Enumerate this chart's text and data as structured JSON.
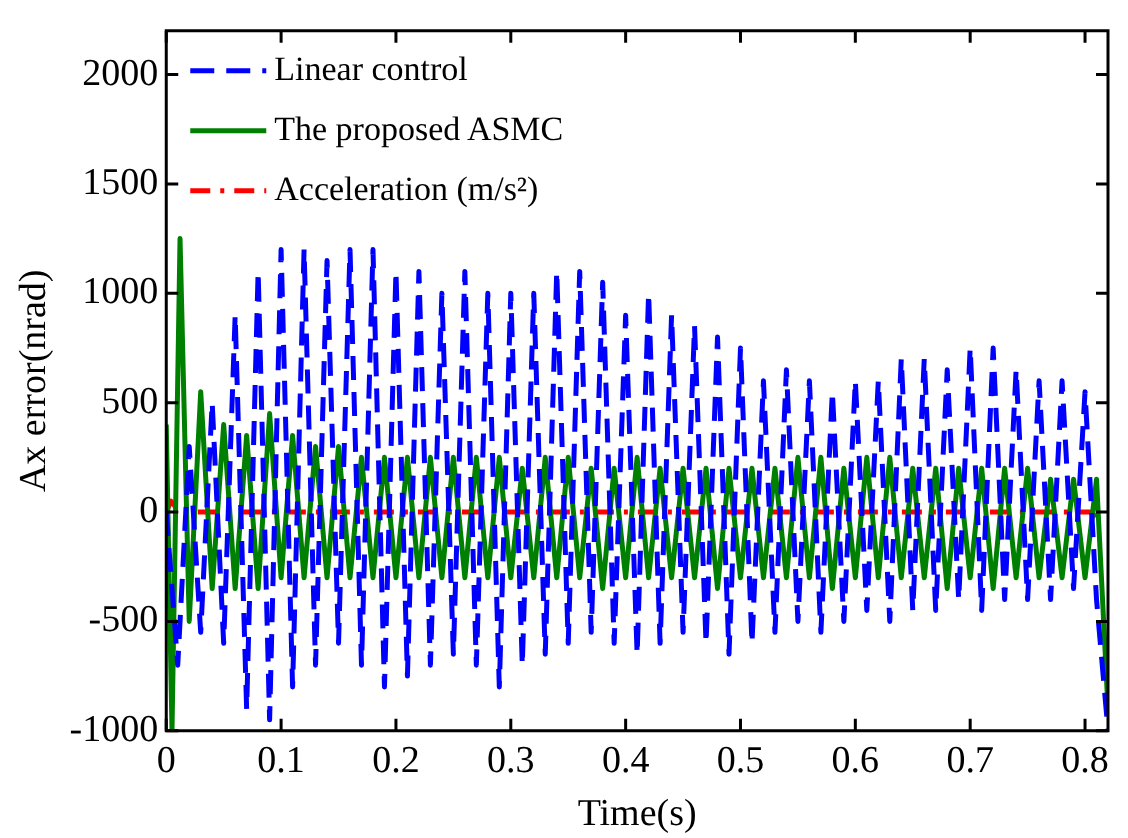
{
  "chart_data": {
    "type": "line",
    "xlabel": "Time(s)",
    "ylabel": "Ax error(nrad)",
    "xlim": [
      0,
      0.82
    ],
    "xticks": [
      0,
      0.1,
      0.2,
      0.3,
      0.4,
      0.5,
      0.6,
      0.7,
      0.8
    ],
    "ylim": [
      -1000,
      2200
    ],
    "yticks": [
      -1000,
      -500,
      0,
      500,
      1000,
      1500,
      2000
    ],
    "grid": false,
    "legend": "top left",
    "marker": "none",
    "series": [
      {
        "name": "Linear control",
        "color": "#0000ff",
        "line_style": "dashed",
        "x": [
          0,
          0.01,
          0.02,
          0.03,
          0.04,
          0.05,
          0.06,
          0.07,
          0.08,
          0.09,
          0.1,
          0.11,
          0.12,
          0.13,
          0.14,
          0.15,
          0.16,
          0.17,
          0.18,
          0.19,
          0.2,
          0.21,
          0.22,
          0.23,
          0.24,
          0.25,
          0.26,
          0.27,
          0.28,
          0.29,
          0.3,
          0.31,
          0.32,
          0.33,
          0.34,
          0.35,
          0.36,
          0.37,
          0.38,
          0.39,
          0.4,
          0.41,
          0.42,
          0.43,
          0.44,
          0.45,
          0.46,
          0.47,
          0.48,
          0.49,
          0.5,
          0.51,
          0.52,
          0.53,
          0.54,
          0.55,
          0.56,
          0.57,
          0.58,
          0.59,
          0.6,
          0.61,
          0.62,
          0.63,
          0.64,
          0.65,
          0.66,
          0.67,
          0.68,
          0.69,
          0.7,
          0.71,
          0.72,
          0.73,
          0.74,
          0.75,
          0.76,
          0.77,
          0.78,
          0.79,
          0.8,
          0.81,
          0.82
        ],
        "values": [
          0,
          -700,
          300,
          -550,
          500,
          -600,
          900,
          -900,
          1100,
          -950,
          1200,
          -800,
          1200,
          -700,
          1150,
          -600,
          1200,
          -700,
          1200,
          -800,
          1100,
          -750,
          1100,
          -700,
          1000,
          -650,
          1100,
          -700,
          1000,
          -800,
          1000,
          -700,
          1000,
          -650,
          1100,
          -600,
          1100,
          -550,
          1050,
          -600,
          900,
          -650,
          1000,
          -600,
          900,
          -550,
          850,
          -600,
          800,
          -650,
          750,
          -600,
          600,
          -550,
          650,
          -500,
          600,
          -550,
          550,
          -500,
          600,
          -450,
          600,
          -500,
          700,
          -450,
          700,
          -450,
          650,
          -400,
          750,
          -450,
          750,
          -400,
          650,
          -400,
          600,
          -400,
          600,
          -350,
          550,
          -400,
          -1000
        ]
      },
      {
        "name": "The proposed ASMC",
        "color": "#008000",
        "line_style": "solid",
        "x": [
          0,
          0.005,
          0.012,
          0.02,
          0.03,
          0.04,
          0.05,
          0.06,
          0.07,
          0.08,
          0.09,
          0.1,
          0.11,
          0.12,
          0.13,
          0.14,
          0.15,
          0.16,
          0.17,
          0.18,
          0.19,
          0.2,
          0.21,
          0.22,
          0.23,
          0.24,
          0.25,
          0.26,
          0.27,
          0.28,
          0.29,
          0.3,
          0.31,
          0.32,
          0.33,
          0.34,
          0.35,
          0.36,
          0.37,
          0.38,
          0.39,
          0.4,
          0.41,
          0.42,
          0.43,
          0.44,
          0.45,
          0.46,
          0.47,
          0.48,
          0.49,
          0.5,
          0.51,
          0.52,
          0.53,
          0.54,
          0.55,
          0.56,
          0.57,
          0.58,
          0.59,
          0.6,
          0.61,
          0.62,
          0.63,
          0.64,
          0.65,
          0.66,
          0.67,
          0.68,
          0.69,
          0.7,
          0.71,
          0.72,
          0.73,
          0.74,
          0.75,
          0.76,
          0.77,
          0.78,
          0.79,
          0.8,
          0.81,
          0.82
        ],
        "values": [
          400,
          -1000,
          1250,
          -500,
          550,
          -350,
          400,
          -350,
          350,
          -350,
          450,
          -300,
          350,
          -300,
          300,
          -300,
          300,
          -300,
          250,
          -300,
          250,
          -300,
          250,
          -300,
          250,
          -300,
          250,
          -300,
          250,
          -300,
          250,
          -300,
          200,
          -300,
          250,
          -300,
          250,
          -300,
          200,
          -350,
          200,
          -300,
          250,
          -300,
          200,
          -300,
          200,
          -300,
          200,
          -350,
          200,
          -300,
          200,
          -300,
          200,
          -300,
          250,
          -300,
          250,
          -350,
          200,
          -300,
          250,
          -300,
          250,
          -300,
          200,
          -300,
          200,
          -350,
          200,
          -300,
          200,
          -350,
          200,
          -300,
          200,
          -300,
          150,
          -300,
          150,
          -300,
          150,
          -900
        ]
      },
      {
        "name": "Acceleration (m/s²)",
        "color": "#ff0000",
        "line_style": "dashdot",
        "x": [
          0,
          0.004,
          0.012,
          0.805,
          0.815
        ],
        "values": [
          0,
          50,
          0,
          0,
          -50
        ]
      }
    ]
  }
}
